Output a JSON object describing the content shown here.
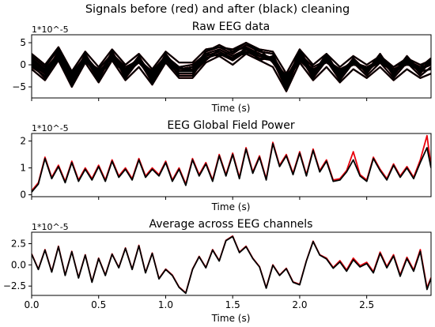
{
  "figure": {
    "suptitle": "Signals before (red) and after (black) cleaning",
    "before_color": "#e8000b",
    "after_color": "#000000"
  },
  "chart_data": [
    {
      "type": "line",
      "title": "Raw EEG data",
      "xlabel": "Time (s)",
      "ylabel": "",
      "offset_text": "1*10^-5",
      "xlim": [
        0.0,
        2.98
      ],
      "ylim": [
        -7.5,
        6.8
      ],
      "yticks": [
        -5,
        0,
        5
      ],
      "ytick_labels": [
        "−5",
        "0",
        "5"
      ],
      "xticks": [
        0.0,
        0.5,
        1.0,
        1.5,
        2.0,
        2.5
      ],
      "xtick_labels": [],
      "grid": false,
      "channel_count": 12,
      "x": [
        0.0,
        0.1,
        0.2,
        0.3,
        0.4,
        0.5,
        0.6,
        0.7,
        0.8,
        0.9,
        1.0,
        1.1,
        1.2,
        1.3,
        1.4,
        1.5,
        1.6,
        1.7,
        1.8,
        1.9,
        2.0,
        2.1,
        2.2,
        2.3,
        2.4,
        2.5,
        2.6,
        2.7,
        2.8,
        2.9,
        2.98
      ],
      "series": [
        {
          "values": [
            1.0,
            -1.5,
            2.5,
            -3.0,
            1.5,
            -2.0,
            2.0,
            -1.5,
            1.0,
            -2.5,
            1.5,
            -1.0,
            -0.5,
            2.0,
            3.0,
            1.5,
            3.5,
            2.0,
            1.5,
            -3.5,
            2.0,
            -1.5,
            1.0,
            -2.0,
            0.5,
            -1.0,
            1.0,
            -1.5,
            0.5,
            -1.0,
            0.5
          ]
        },
        {
          "values": [
            0.5,
            -2.0,
            3.0,
            -4.0,
            2.0,
            -3.0,
            3.0,
            -2.5,
            1.5,
            -3.5,
            2.0,
            -1.5,
            -1.0,
            3.0,
            4.0,
            2.5,
            4.5,
            3.0,
            2.5,
            -5.0,
            3.0,
            -2.5,
            2.0,
            -3.0,
            1.5,
            -2.0,
            2.0,
            -2.5,
            1.5,
            -2.0,
            1.0
          ]
        },
        {
          "values": [
            1.5,
            -1.0,
            2.0,
            -2.5,
            1.0,
            -1.5,
            1.5,
            -1.0,
            0.5,
            -2.0,
            1.0,
            -0.5,
            -1.5,
            1.5,
            2.5,
            1.0,
            3.0,
            1.5,
            1.0,
            -2.5,
            1.5,
            -1.0,
            0.5,
            -1.5,
            0.0,
            -0.5,
            0.5,
            -1.0,
            0.0,
            -0.5,
            0.0
          ]
        },
        {
          "values": [
            -0.5,
            -2.5,
            1.5,
            -3.5,
            2.5,
            -2.5,
            1.0,
            -2.0,
            2.0,
            -3.0,
            0.5,
            -2.0,
            -2.0,
            1.0,
            3.5,
            2.0,
            2.5,
            3.5,
            0.5,
            -4.0,
            1.0,
            -2.0,
            1.5,
            -2.5,
            1.0,
            -1.5,
            1.5,
            -2.0,
            1.0,
            -1.5,
            -1.0
          ]
        },
        {
          "values": [
            2.0,
            -0.5,
            3.5,
            -2.0,
            1.0,
            -1.0,
            2.5,
            -0.5,
            1.0,
            -1.5,
            2.0,
            -0.5,
            0.0,
            2.5,
            2.0,
            3.0,
            4.0,
            1.0,
            2.0,
            -3.0,
            2.5,
            -0.5,
            1.0,
            -1.0,
            0.5,
            -0.5,
            1.0,
            -0.5,
            1.0,
            -0.5,
            1.5
          ]
        },
        {
          "values": [
            0.0,
            -3.0,
            2.0,
            -4.5,
            1.5,
            -3.5,
            2.5,
            -3.0,
            1.0,
            -4.0,
            1.5,
            -2.5,
            -2.5,
            2.0,
            3.0,
            1.0,
            4.0,
            2.5,
            1.0,
            -5.5,
            2.0,
            -3.0,
            1.0,
            -3.5,
            0.5,
            -2.5,
            0.5,
            -3.0,
            0.5,
            -2.5,
            -0.5
          ]
        },
        {
          "values": [
            1.0,
            -1.0,
            2.5,
            -2.0,
            2.0,
            -2.0,
            2.0,
            -1.0,
            1.5,
            -2.0,
            1.5,
            -1.0,
            -0.5,
            2.5,
            3.5,
            2.0,
            3.5,
            2.5,
            1.5,
            -3.0,
            2.0,
            -1.5,
            1.5,
            -1.5,
            1.0,
            -1.0,
            1.0,
            -1.0,
            0.5,
            -1.0,
            0.5
          ]
        },
        {
          "values": [
            0.5,
            -2.0,
            3.0,
            -3.5,
            1.0,
            -2.5,
            3.0,
            -2.0,
            0.5,
            -3.0,
            2.5,
            -1.5,
            -1.5,
            3.0,
            4.5,
            3.0,
            5.0,
            3.0,
            2.5,
            -4.5,
            3.5,
            -2.0,
            2.5,
            -2.5,
            1.5,
            -1.5,
            2.5,
            -2.0,
            2.0,
            -1.5,
            1.5
          ]
        },
        {
          "values": [
            1.5,
            -1.5,
            2.0,
            -3.0,
            2.0,
            -1.5,
            1.5,
            -1.5,
            1.5,
            -2.5,
            1.0,
            -1.0,
            -1.0,
            1.5,
            2.5,
            1.5,
            3.0,
            2.0,
            1.0,
            -3.5,
            1.5,
            -1.5,
            1.0,
            -2.0,
            0.5,
            -1.0,
            0.5,
            -1.5,
            0.5,
            -1.0,
            0.0
          ]
        },
        {
          "values": [
            -1.0,
            -3.5,
            1.0,
            -5.0,
            0.5,
            -4.0,
            1.0,
            -3.5,
            -0.5,
            -4.5,
            0.5,
            -3.0,
            -3.0,
            0.5,
            2.0,
            0.0,
            2.5,
            1.0,
            -0.5,
            -6.0,
            0.5,
            -3.5,
            -0.5,
            -4.0,
            -1.0,
            -3.0,
            -0.5,
            -3.5,
            -1.0,
            -3.0,
            -2.0
          ]
        },
        {
          "values": [
            2.5,
            0.0,
            4.0,
            -1.5,
            3.0,
            -0.5,
            3.5,
            0.0,
            2.5,
            -1.0,
            3.0,
            0.5,
            0.5,
            3.5,
            4.0,
            3.5,
            5.0,
            3.5,
            3.0,
            -2.0,
            3.5,
            0.0,
            2.5,
            -0.5,
            2.0,
            0.0,
            2.0,
            -0.5,
            1.5,
            0.0,
            1.0
          ]
        },
        {
          "values": [
            0.0,
            -2.0,
            2.0,
            -3.0,
            1.0,
            -2.5,
            2.0,
            -2.0,
            1.0,
            -3.0,
            1.0,
            -1.5,
            -1.5,
            2.0,
            3.0,
            1.5,
            3.5,
            2.0,
            1.5,
            -4.0,
            2.0,
            -2.0,
            1.0,
            -2.5,
            0.5,
            -1.5,
            1.0,
            -2.0,
            0.5,
            -1.5,
            0.5
          ]
        }
      ]
    },
    {
      "type": "line",
      "title": "EEG Global Field Power",
      "xlabel": "Time (s)",
      "ylabel": "",
      "offset_text": "1*10^-5",
      "xlim": [
        0.0,
        2.98
      ],
      "ylim": [
        -0.07,
        2.28
      ],
      "yticks": [
        0,
        1,
        2
      ],
      "ytick_labels": [
        "0",
        "1",
        "2"
      ],
      "xticks": [
        0.0,
        0.5,
        1.0,
        1.5,
        2.0,
        2.5
      ],
      "xtick_labels": [],
      "grid": false,
      "x": [
        0.0,
        0.05,
        0.1,
        0.15,
        0.2,
        0.25,
        0.3,
        0.35,
        0.4,
        0.45,
        0.5,
        0.55,
        0.6,
        0.65,
        0.7,
        0.75,
        0.8,
        0.85,
        0.9,
        0.95,
        1.0,
        1.05,
        1.1,
        1.15,
        1.2,
        1.25,
        1.3,
        1.35,
        1.4,
        1.45,
        1.5,
        1.55,
        1.6,
        1.65,
        1.7,
        1.75,
        1.8,
        1.85,
        1.9,
        1.95,
        2.0,
        2.05,
        2.1,
        2.15,
        2.2,
        2.25,
        2.3,
        2.35,
        2.4,
        2.45,
        2.5,
        2.55,
        2.6,
        2.65,
        2.7,
        2.75,
        2.8,
        2.85,
        2.9,
        2.95,
        2.98
      ],
      "series": [
        {
          "name": "before cleaning",
          "values": [
            0.15,
            0.45,
            1.4,
            0.65,
            1.1,
            0.5,
            1.25,
            0.55,
            1.0,
            0.6,
            1.1,
            0.55,
            1.3,
            0.7,
            1.0,
            0.6,
            1.35,
            0.7,
            1.0,
            0.75,
            1.25,
            0.55,
            1.0,
            0.4,
            1.35,
            0.75,
            1.2,
            0.55,
            1.5,
            0.75,
            1.55,
            0.65,
            1.75,
            0.85,
            1.45,
            0.6,
            1.95,
            1.1,
            1.5,
            0.8,
            1.6,
            0.75,
            1.7,
            0.9,
            1.3,
            0.55,
            0.6,
            0.9,
            1.6,
            0.75,
            0.55,
            1.4,
            0.95,
            0.6,
            1.15,
            0.7,
            1.05,
            0.65,
            1.3,
            2.2,
            1.05
          ]
        },
        {
          "name": "after cleaning",
          "values": [
            0.1,
            0.4,
            1.35,
            0.6,
            1.05,
            0.45,
            1.2,
            0.5,
            0.95,
            0.55,
            1.05,
            0.5,
            1.25,
            0.65,
            0.95,
            0.55,
            1.3,
            0.65,
            0.95,
            0.7,
            1.2,
            0.5,
            0.95,
            0.35,
            1.3,
            0.7,
            1.15,
            0.5,
            1.45,
            0.7,
            1.5,
            0.6,
            1.7,
            0.8,
            1.4,
            0.55,
            1.9,
            1.05,
            1.45,
            0.75,
            1.55,
            0.7,
            1.65,
            0.85,
            1.25,
            0.5,
            0.55,
            0.85,
            1.3,
            0.7,
            0.5,
            1.35,
            0.9,
            0.55,
            1.1,
            0.65,
            1.0,
            0.6,
            1.2,
            1.75,
            1.0
          ]
        }
      ]
    },
    {
      "type": "line",
      "title": "Average across EEG channels",
      "xlabel": "Time (s)",
      "ylabel": "",
      "offset_text": "1*10^-5",
      "xlim": [
        0.0,
        2.98
      ],
      "ylim": [
        -3.6,
        3.85
      ],
      "yticks": [
        -2.5,
        0.0,
        2.5
      ],
      "ytick_labels": [
        "−2.5",
        "0.0",
        "2.5"
      ],
      "xticks": [
        0.0,
        0.5,
        1.0,
        1.5,
        2.0,
        2.5
      ],
      "xtick_labels": [
        "0.0",
        "0.5",
        "1.0",
        "1.5",
        "2.0",
        "2.5"
      ],
      "grid": false,
      "x": [
        0.0,
        0.05,
        0.1,
        0.15,
        0.2,
        0.25,
        0.3,
        0.35,
        0.4,
        0.45,
        0.5,
        0.55,
        0.6,
        0.65,
        0.7,
        0.75,
        0.8,
        0.85,
        0.9,
        0.95,
        1.0,
        1.05,
        1.1,
        1.15,
        1.2,
        1.25,
        1.3,
        1.35,
        1.4,
        1.45,
        1.5,
        1.55,
        1.6,
        1.65,
        1.7,
        1.75,
        1.8,
        1.85,
        1.9,
        1.95,
        2.0,
        2.05,
        2.1,
        2.15,
        2.2,
        2.25,
        2.3,
        2.35,
        2.4,
        2.45,
        2.5,
        2.55,
        2.6,
        2.65,
        2.7,
        2.75,
        2.8,
        2.85,
        2.9,
        2.95,
        2.98
      ],
      "series": [
        {
          "name": "before cleaning",
          "values": [
            1.3,
            -0.5,
            1.8,
            -0.8,
            2.2,
            -1.2,
            1.6,
            -1.5,
            1.2,
            -2.0,
            0.8,
            -1.2,
            1.3,
            -0.3,
            2.0,
            -0.5,
            2.3,
            -0.9,
            1.4,
            -1.6,
            -0.5,
            -1.2,
            -2.6,
            -3.3,
            -0.5,
            1.0,
            -0.3,
            1.8,
            0.5,
            2.9,
            3.4,
            1.5,
            2.2,
            0.8,
            -0.2,
            -2.7,
            0.0,
            -1.2,
            -0.4,
            -2.0,
            -2.3,
            0.5,
            2.8,
            1.2,
            0.8,
            -0.3,
            0.5,
            -0.6,
            0.8,
            -0.1,
            0.3,
            -0.8,
            1.5,
            -0.2,
            1.2,
            -1.2,
            0.9,
            -0.6,
            1.8,
            -2.7,
            -1.5
          ]
        },
        {
          "name": "after cleaning",
          "values": [
            1.25,
            -0.55,
            1.75,
            -0.85,
            2.15,
            -1.25,
            1.55,
            -1.55,
            1.15,
            -2.05,
            0.75,
            -1.25,
            1.25,
            -0.35,
            1.95,
            -0.55,
            2.25,
            -0.95,
            1.35,
            -1.65,
            -0.55,
            -1.25,
            -2.65,
            -3.35,
            -0.55,
            0.95,
            -0.35,
            1.75,
            0.45,
            2.85,
            3.35,
            1.45,
            2.15,
            0.75,
            -0.25,
            -2.75,
            -0.05,
            -1.25,
            -0.45,
            -2.05,
            -2.35,
            0.45,
            2.75,
            1.15,
            0.7,
            -0.4,
            0.35,
            -0.75,
            0.6,
            -0.25,
            0.15,
            -0.95,
            1.35,
            -0.35,
            1.05,
            -1.35,
            0.75,
            -0.75,
            1.6,
            -2.9,
            -1.6
          ]
        }
      ]
    }
  ]
}
